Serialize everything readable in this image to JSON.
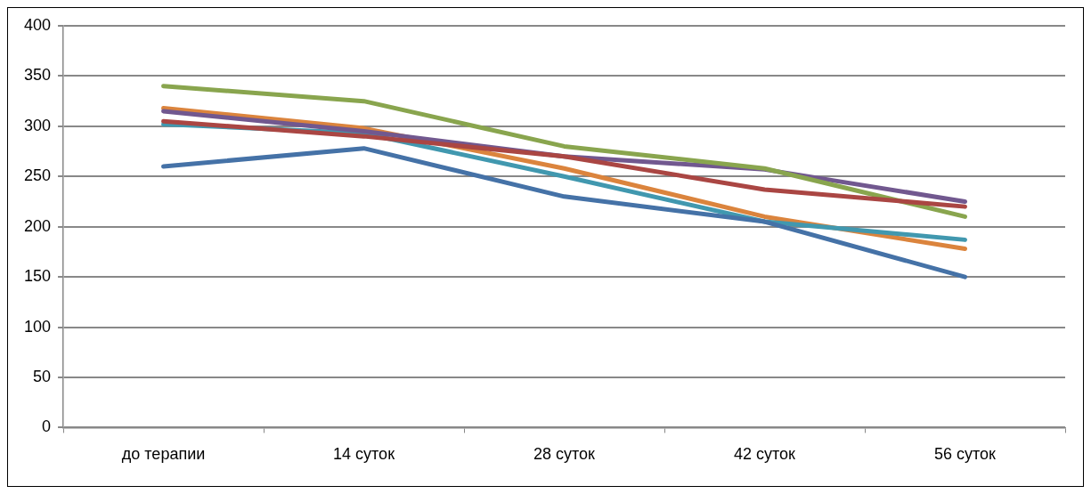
{
  "chart_data": {
    "type": "line",
    "categories": [
      "до терапии",
      "14 суток",
      "28 суток",
      "42 суток",
      "56 суток"
    ],
    "series": [
      {
        "color": "#4572a7",
        "values": [
          260,
          278,
          230,
          205,
          150
        ]
      },
      {
        "color": "#aa4643",
        "values": [
          305,
          290,
          270,
          237,
          220
        ]
      },
      {
        "color": "#89a54e",
        "values": [
          340,
          325,
          280,
          258,
          210
        ]
      },
      {
        "color": "#71588f",
        "values": [
          315,
          295,
          270,
          257,
          225
        ]
      },
      {
        "color": "#4198af",
        "values": [
          302,
          293,
          250,
          205,
          187
        ]
      },
      {
        "color": "#db843d",
        "values": [
          318,
          298,
          258,
          210,
          178
        ]
      }
    ],
    "ylim": [
      0,
      400
    ],
    "yticks": [
      0,
      50,
      100,
      150,
      200,
      250,
      300,
      350,
      400
    ],
    "grid": "y",
    "legend": false,
    "marker": "none",
    "line_style": "solid"
  }
}
